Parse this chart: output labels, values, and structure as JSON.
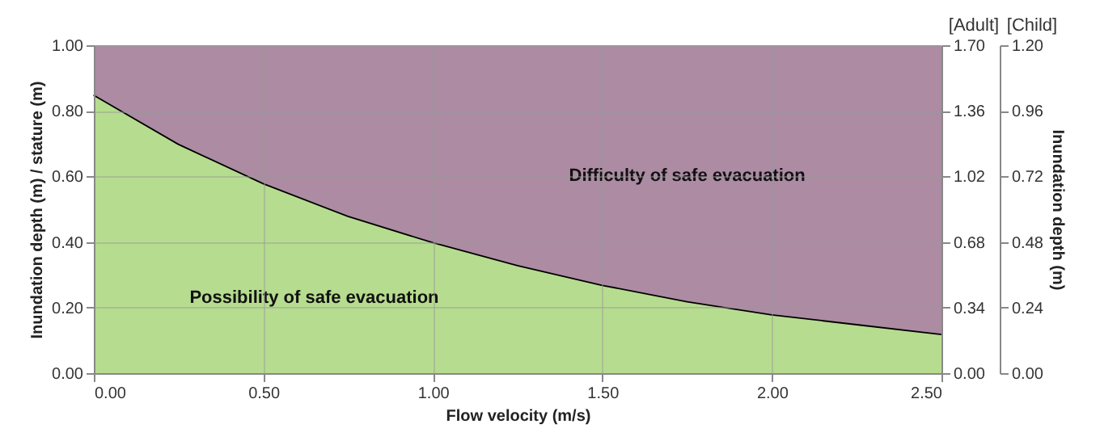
{
  "chart_data": {
    "type": "area",
    "stacked": true,
    "xlabel": "Flow velocity (m/s)",
    "ylabel": "Inundation depth (m) / stature (m)",
    "y3label": "Inundation depth (m)",
    "x": [
      0,
      0.25,
      0.5,
      0.75,
      1,
      1.25,
      1.5,
      1.75,
      2,
      2.25,
      2.5
    ],
    "series": [
      {
        "color": "#b6dc8f",
        "values": [
          0.85,
          0.7,
          0.58,
          0.48,
          0.4,
          0.33,
          0.27,
          0.22,
          0.18,
          0.15,
          0.12
        ]
      },
      {
        "color": "#ac8ba3",
        "values": [
          0.15,
          0.3,
          0.42,
          0.52,
          0.6,
          0.67,
          0.73,
          0.78,
          0.82,
          0.85,
          0.88
        ]
      }
    ],
    "xlim": [
      0,
      2.5
    ],
    "xticks": [
      {
        "value": 0,
        "label": "0.00"
      },
      {
        "value": 0.5,
        "label": "0.50"
      },
      {
        "value": 1,
        "label": "1.00"
      },
      {
        "value": 1.5,
        "label": "1.50"
      },
      {
        "value": 2,
        "label": "2.00"
      },
      {
        "value": 2.5,
        "label": "2.50"
      }
    ],
    "ylim": [
      0,
      1
    ],
    "yticks": [
      {
        "value": 0,
        "label": "0.00"
      },
      {
        "value": 0.2,
        "label": "0.20"
      },
      {
        "value": 0.4,
        "label": "0.40"
      },
      {
        "value": 0.6,
        "label": "0.60"
      },
      {
        "value": 0.8,
        "label": "0.80"
      },
      {
        "value": 1,
        "label": "1.00"
      }
    ],
    "y2lim": [
      0,
      1.7
    ],
    "y2ticks": [
      {
        "value": 0,
        "label": "0.00"
      },
      0.34,
      0.68,
      1.02,
      1.36,
      {
        "value": 1.7,
        "label": "1.70"
      }
    ],
    "y3lim": [
      0,
      1.2
    ],
    "y3ticks": [
      {
        "value": 0,
        "label": "0.00"
      },
      0.24,
      0.48,
      0.72,
      0.96,
      {
        "value": 1.2,
        "label": "1.20"
      }
    ],
    "grid": true,
    "annotations": [
      "Difficulty of safe evacuation",
      "Possibility of safe evacuation",
      "[Adult]",
      "[Child]"
    ]
  }
}
